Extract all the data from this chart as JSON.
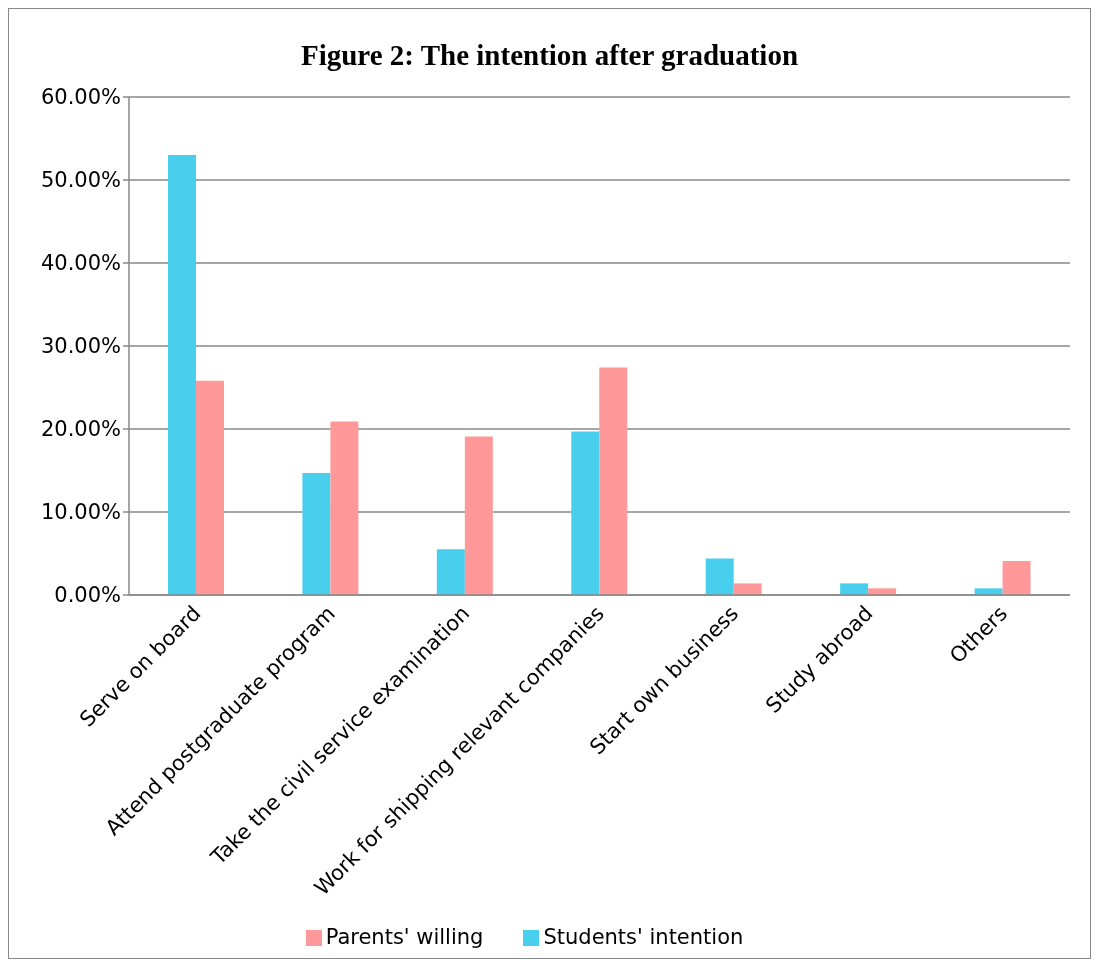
{
  "chart_data": {
    "type": "bar",
    "title": "Figure 2: The intention after graduation",
    "categories": [
      "Serve on board",
      "Attend postgraduate program",
      "Take the civil service examination",
      "Work for shipping relevant companies",
      "Start own business",
      "Study abroad",
      "Others"
    ],
    "series": [
      {
        "name": "Students' intention",
        "color": "#48cfed",
        "values": [
          53.0,
          14.7,
          5.5,
          19.7,
          4.4,
          1.4,
          0.8
        ]
      },
      {
        "name": "Parents' willing",
        "color": "#ff9999",
        "values": [
          25.8,
          20.9,
          19.1,
          27.4,
          1.4,
          0.8,
          4.1
        ]
      }
    ],
    "ylim": [
      0,
      60
    ],
    "yticks": [
      {
        "value": 0,
        "label": "0.00%"
      },
      {
        "value": 10,
        "label": "10.00%"
      },
      {
        "value": 20,
        "label": "20.00%"
      },
      {
        "value": 30,
        "label": "30.00%"
      },
      {
        "value": 40,
        "label": "40.00%"
      },
      {
        "value": 50,
        "label": "50.00%"
      },
      {
        "value": 60,
        "label": "60.00%"
      }
    ],
    "grid": "y",
    "legend": "bottom"
  }
}
